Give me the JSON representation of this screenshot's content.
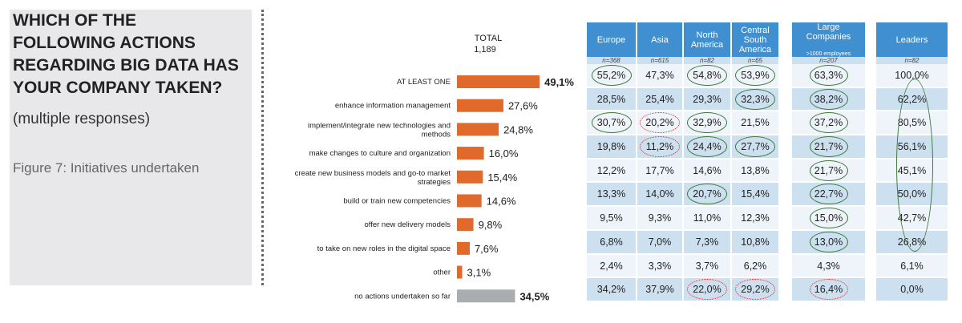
{
  "question": {
    "lines": [
      "WHICH OF THE",
      "FOLLOWING ACTIONS",
      "REGARDING BIG DATA HAS",
      "YOUR COMPANY TAKEN?"
    ],
    "sub": "(multiple responses)",
    "caption": "Figure 7: Initiatives undertaken"
  },
  "colors": {
    "bar": "#e06a2c",
    "bar_none": "#a9acb0",
    "header": "#3f8fd1",
    "row_light": "#eef4fa",
    "row_dark": "#cde0f0",
    "circle_green": "#3e7a3a",
    "circle_red": "#dd2222"
  },
  "chart_data": {
    "type": "bar",
    "title": "TOTAL",
    "subtitle": "1,189",
    "categories": [
      "AT LEAST ONE",
      "enhance information management",
      "implement/integrate new technologies and methods",
      "make changes to culture and organization",
      "create new business models and go-to market strategies",
      "build or train new competencies",
      "offer new delivery models",
      "to take on new roles in the digital space",
      "other",
      "no actions undertaken so far"
    ],
    "values": [
      49.1,
      27.6,
      24.8,
      16.0,
      15.4,
      14.6,
      9.8,
      7.6,
      3.1,
      34.5
    ],
    "value_labels": [
      "49,1%",
      "27,6%",
      "24,8%",
      "16,0%",
      "15,4%",
      "14,6%",
      "9,8%",
      "7,6%",
      "3,1%",
      "34,5%"
    ],
    "xlim": [
      0,
      100
    ]
  },
  "table": {
    "columns": [
      {
        "header": "Europe",
        "n": "n=368",
        "values": [
          "55,2%",
          "28,5%",
          "30,7%",
          "19,8%",
          "12,2%",
          "13,3%",
          "9,5%",
          "6,8%",
          "2,4%",
          "34,2%"
        ],
        "marks": [
          "g",
          "",
          "g",
          "",
          "",
          "",
          "",
          "",
          "",
          ""
        ]
      },
      {
        "header": "Asia",
        "n": "n=615",
        "values": [
          "47,3%",
          "25,4%",
          "20,2%",
          "11,2%",
          "17,7%",
          "14,0%",
          "9,3%",
          "7,0%",
          "3,3%",
          "37,9%"
        ],
        "marks": [
          "",
          "",
          "r",
          "r",
          "",
          "",
          "",
          "",
          "",
          ""
        ]
      },
      {
        "header": "North\nAmerica",
        "n": "n=82",
        "values": [
          "54,8%",
          "29,3%",
          "32,9%",
          "24,4%",
          "14,6%",
          "20,7%",
          "11,0%",
          "7,3%",
          "3,7%",
          "22,0%"
        ],
        "marks": [
          "g",
          "",
          "g",
          "g",
          "",
          "g",
          "",
          "",
          "",
          "r"
        ]
      },
      {
        "header": "Central\nSouth\nAmerica",
        "n": "n=65",
        "values": [
          "53,9%",
          "32,3%",
          "21,5%",
          "27,7%",
          "13,8%",
          "15,4%",
          "12,3%",
          "10,8%",
          "6,2%",
          "29,2%"
        ],
        "marks": [
          "g",
          "g",
          "",
          "g",
          "",
          "",
          "",
          "",
          "",
          "r"
        ]
      },
      {
        "header": "Large\nCompanies",
        "header_small": ">1000 employees",
        "n": "n=207",
        "values": [
          "63,3%",
          "38,2%",
          "37,2%",
          "21,7%",
          "21,7%",
          "22,7%",
          "15,0%",
          "13,0%",
          "4,3%",
          "16,4%"
        ],
        "marks": [
          "g",
          "g",
          "g",
          "g",
          "g",
          "g",
          "g",
          "g",
          "",
          "r"
        ]
      },
      {
        "header": "Leaders",
        "n": "n=82",
        "values": [
          "100,0%",
          "62,2%",
          "80,5%",
          "56,1%",
          "45,1%",
          "50,0%",
          "42,7%",
          "26,8%",
          "6,1%",
          "0,0%"
        ],
        "marks": [
          "",
          "",
          "",
          "",
          "",
          "",
          "",
          "",
          "",
          ""
        ]
      }
    ]
  }
}
